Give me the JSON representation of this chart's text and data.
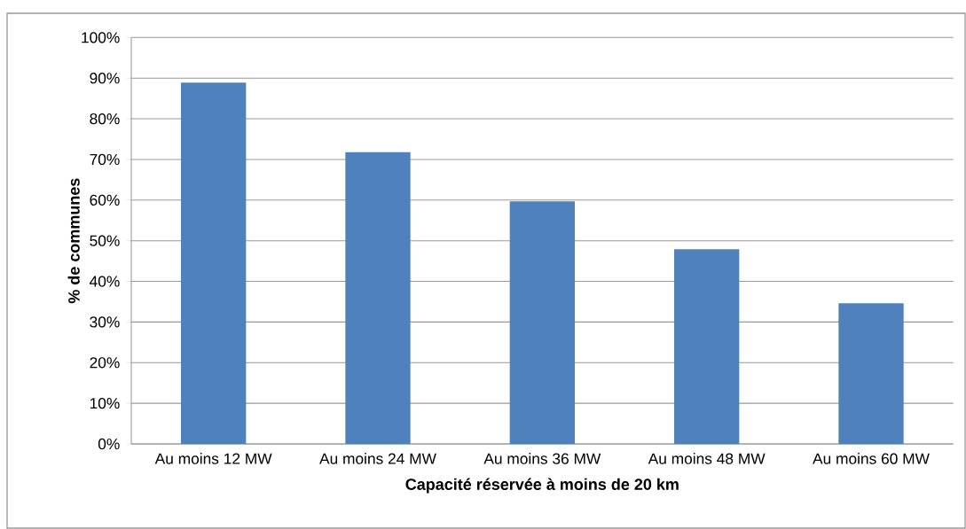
{
  "chart_data": {
    "type": "bar",
    "xlabel": "Capacité réservée à moins de 20 km",
    "ylabel": "% de communes",
    "categories": [
      "Au moins 12 MW",
      "Au moins 24 MW",
      "Au moins 36 MW",
      "Au moins 48 MW",
      "Au moins 60 MW"
    ],
    "values": [
      88.9,
      71.8,
      59.7,
      47.9,
      34.6
    ],
    "color": "#4f81bd",
    "ylim": [
      0,
      100
    ],
    "yticks": [
      {
        "value": 0,
        "label": "0%"
      },
      {
        "value": 10,
        "label": "10%"
      },
      {
        "value": 20,
        "label": "20%"
      },
      {
        "value": 30,
        "label": "30%"
      },
      {
        "value": 40,
        "label": "40%"
      },
      {
        "value": 50,
        "label": "50%"
      },
      {
        "value": 60,
        "label": "60%"
      },
      {
        "value": 70,
        "label": "70%"
      },
      {
        "value": 80,
        "label": "80%"
      },
      {
        "value": 90,
        "label": "90%"
      },
      {
        "value": 100,
        "label": "100%"
      }
    ],
    "grid": "y"
  }
}
